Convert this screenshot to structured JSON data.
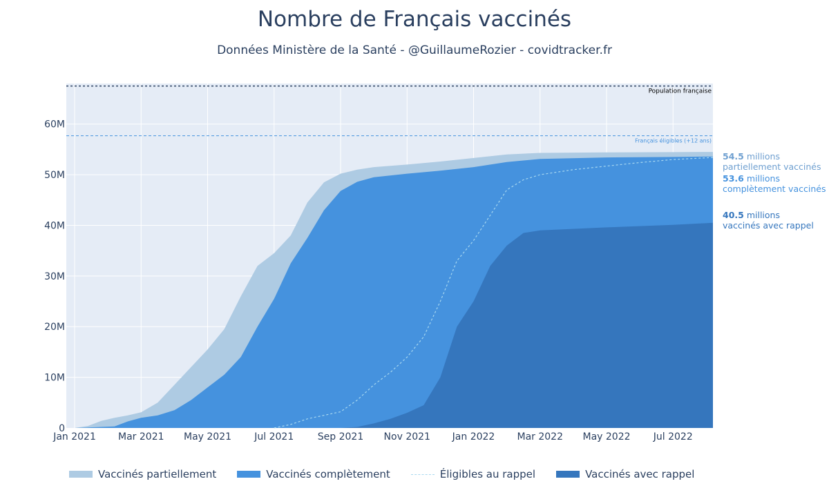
{
  "title": "Nombre de Français vaccinés",
  "subtitle": "Données Ministère de la Santé - @GuillaumeRozier - covidtracker.fr",
  "colors": {
    "partial": "#aecbe3",
    "complete": "#4592de",
    "booster": "#3576bd",
    "eligible_line": "#a8d8f0",
    "ref_population": "#2a3f5f",
    "ref_eligible": "#4592de",
    "plot_bg": "#e5ecf6"
  },
  "annotations": {
    "partial": {
      "value": "54.5",
      "unit": " millions",
      "label": "partiellement vaccinés"
    },
    "complete": {
      "value": "53.6",
      "unit": " millions",
      "label": "complètement vaccinés"
    },
    "booster": {
      "value": "40.5",
      "unit": " millions",
      "label": "vaccinés avec rappel"
    }
  },
  "legend": {
    "partial": "Vaccinés partiellement",
    "complete": "Vaccinés complètement",
    "eligible": "Éligibles au rappel",
    "booster": "Vaccinés avec rappel"
  },
  "chart_data": {
    "type": "area",
    "title": "Nombre de Français vaccinés",
    "x_unit": "months since 2021-01-01",
    "xlim": [
      -0.25,
      19.2
    ],
    "ylim": [
      0,
      68000000
    ],
    "x_ticks": [
      {
        "x": 0,
        "label": "Jan 2021"
      },
      {
        "x": 2,
        "label": "Mar 2021"
      },
      {
        "x": 4,
        "label": "May 2021"
      },
      {
        "x": 6,
        "label": "Jul 2021"
      },
      {
        "x": 8,
        "label": "Sep 2021"
      },
      {
        "x": 10,
        "label": "Nov 2021"
      },
      {
        "x": 12,
        "label": "Jan 2022"
      },
      {
        "x": 14,
        "label": "Mar 2022"
      },
      {
        "x": 16,
        "label": "May 2022"
      },
      {
        "x": 18,
        "label": "Jul 2022"
      }
    ],
    "y_ticks": [
      {
        "y": 0,
        "label": "0"
      },
      {
        "y": 10000000,
        "label": "10M"
      },
      {
        "y": 20000000,
        "label": "20M"
      },
      {
        "y": 30000000,
        "label": "30M"
      },
      {
        "y": 40000000,
        "label": "40M"
      },
      {
        "y": 50000000,
        "label": "50M"
      },
      {
        "y": 60000000,
        "label": "60M"
      }
    ],
    "reference_lines": [
      {
        "name": "Population française",
        "y": 67500000
      },
      {
        "name": "Français éligibles (+12 ans)",
        "y": 57700000
      }
    ],
    "series": [
      {
        "name": "Vaccinés partiellement",
        "style": "area",
        "color_key": "partial",
        "points": [
          [
            0,
            0
          ],
          [
            0.4,
            400000
          ],
          [
            0.8,
            1400000
          ],
          [
            1.2,
            2000000
          ],
          [
            1.6,
            2500000
          ],
          [
            2,
            3100000
          ],
          [
            2.5,
            5000000
          ],
          [
            3,
            8500000
          ],
          [
            3.5,
            12000000
          ],
          [
            4,
            15500000
          ],
          [
            4.5,
            19500000
          ],
          [
            5,
            26000000
          ],
          [
            5.5,
            32000000
          ],
          [
            6,
            34500000
          ],
          [
            6.5,
            38000000
          ],
          [
            7,
            44500000
          ],
          [
            7.5,
            48500000
          ],
          [
            8,
            50200000
          ],
          [
            8.5,
            51000000
          ],
          [
            9,
            51500000
          ],
          [
            10,
            52000000
          ],
          [
            11,
            52600000
          ],
          [
            12,
            53300000
          ],
          [
            13,
            54000000
          ],
          [
            14,
            54300000
          ],
          [
            16,
            54400000
          ],
          [
            18,
            54450000
          ],
          [
            19.2,
            54500000
          ]
        ]
      },
      {
        "name": "Vaccinés complètement",
        "style": "area",
        "color_key": "complete",
        "points": [
          [
            0,
            0
          ],
          [
            1.2,
            300000
          ],
          [
            1.6,
            1300000
          ],
          [
            2,
            2000000
          ],
          [
            2.5,
            2500000
          ],
          [
            3,
            3500000
          ],
          [
            3.5,
            5500000
          ],
          [
            4,
            8000000
          ],
          [
            4.5,
            10500000
          ],
          [
            5,
            14000000
          ],
          [
            5.5,
            20000000
          ],
          [
            6,
            25500000
          ],
          [
            6.5,
            32500000
          ],
          [
            7,
            37500000
          ],
          [
            7.5,
            43000000
          ],
          [
            8,
            46800000
          ],
          [
            8.5,
            48600000
          ],
          [
            9,
            49500000
          ],
          [
            10,
            50200000
          ],
          [
            11,
            50800000
          ],
          [
            12,
            51500000
          ],
          [
            13,
            52500000
          ],
          [
            14,
            53100000
          ],
          [
            16,
            53400000
          ],
          [
            18,
            53500000
          ],
          [
            19.2,
            53600000
          ]
        ]
      },
      {
        "name": "Vaccinés avec rappel",
        "style": "area",
        "color_key": "booster",
        "points": [
          [
            0,
            0
          ],
          [
            8,
            0
          ],
          [
            8.5,
            200000
          ],
          [
            9,
            900000
          ],
          [
            9.5,
            1800000
          ],
          [
            10,
            3000000
          ],
          [
            10.5,
            4500000
          ],
          [
            11,
            10000000
          ],
          [
            11.5,
            20000000
          ],
          [
            12,
            25000000
          ],
          [
            12.5,
            32000000
          ],
          [
            13,
            36000000
          ],
          [
            13.5,
            38500000
          ],
          [
            14,
            39000000
          ],
          [
            16,
            39600000
          ],
          [
            18,
            40100000
          ],
          [
            19.2,
            40500000
          ]
        ]
      },
      {
        "name": "Éligibles au rappel",
        "style": "dashed-line",
        "color_key": "eligible_line",
        "points": [
          [
            6,
            0
          ],
          [
            6.5,
            700000
          ],
          [
            7,
            1800000
          ],
          [
            7.5,
            2500000
          ],
          [
            8,
            3200000
          ],
          [
            8.5,
            5500000
          ],
          [
            9,
            8500000
          ],
          [
            9.5,
            11000000
          ],
          [
            10,
            14000000
          ],
          [
            10.5,
            18000000
          ],
          [
            11,
            25000000
          ],
          [
            11.5,
            33000000
          ],
          [
            12,
            37000000
          ],
          [
            12.5,
            42000000
          ],
          [
            13,
            47000000
          ],
          [
            13.5,
            49000000
          ],
          [
            14,
            50000000
          ],
          [
            15,
            51000000
          ],
          [
            16,
            51700000
          ],
          [
            17,
            52400000
          ],
          [
            18,
            53000000
          ],
          [
            19.2,
            53400000
          ]
        ]
      }
    ]
  }
}
